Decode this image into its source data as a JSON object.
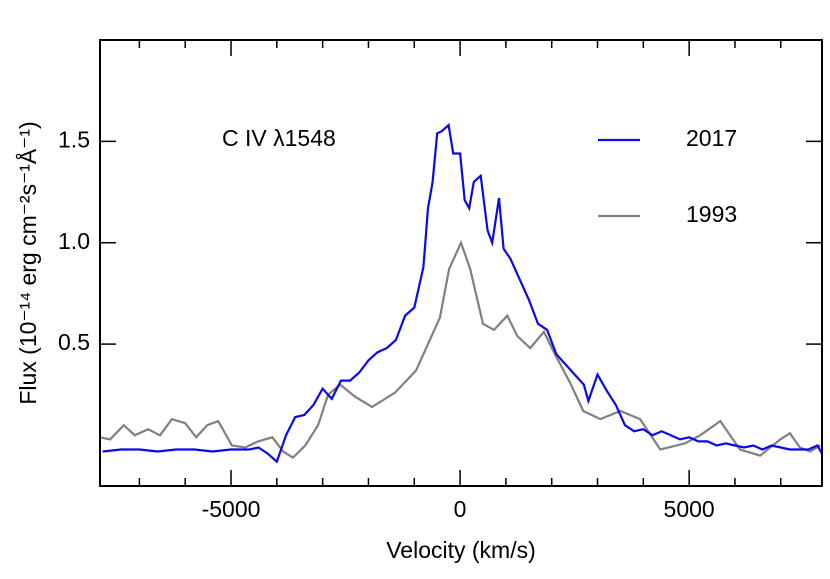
{
  "chart_data": {
    "type": "line",
    "annotation": "C IV λ1548",
    "x_label": "Velocity (km/s)",
    "y_label": "Flux (10⁻¹⁴ erg cm⁻²s⁻¹Å⁻¹)",
    "xlim": [
      -7860,
      7900
    ],
    "ylim": [
      -0.2,
      2.0
    ],
    "xticks": [
      -5000,
      0,
      5000
    ],
    "xminorticks": [
      -7000,
      -6000,
      -4000,
      -3000,
      -2000,
      -1000,
      1000,
      2000,
      3000,
      4000,
      6000,
      7000
    ],
    "yticks": [
      0.5,
      {
        "value": 1.0,
        "label": "1.0"
      },
      1.5
    ],
    "legend": "upper right",
    "series": [
      {
        "name": "2017",
        "color": "#0a0ae6",
        "x": [
          -7800,
          -7400,
          -7000,
          -6600,
          -6200,
          -5800,
          -5400,
          -5000,
          -4600,
          -4400,
          -4200,
          -4000,
          -3800,
          -3600,
          -3400,
          -3200,
          -3000,
          -2800,
          -2600,
          -2400,
          -2200,
          -2000,
          -1800,
          -1600,
          -1400,
          -1200,
          -1000,
          -800,
          -700,
          -600,
          -500,
          -400,
          -250,
          -150,
          0,
          100,
          200,
          300,
          450,
          600,
          700,
          850,
          950,
          1100,
          1300,
          1500,
          1700,
          1900,
          2100,
          2300,
          2500,
          2700,
          2800,
          3000,
          3200,
          3400,
          3600,
          3800,
          4000,
          4200,
          4400,
          4600,
          4800,
          5000,
          5200,
          5400,
          5600,
          5800,
          6000,
          6200,
          6400,
          6600,
          6800,
          7000,
          7200,
          7400,
          7600,
          7800,
          7900
        ],
        "values": [
          -0.03,
          -0.02,
          -0.02,
          -0.03,
          -0.02,
          -0.02,
          -0.03,
          -0.02,
          -0.02,
          -0.01,
          -0.04,
          -0.08,
          0.05,
          0.14,
          0.15,
          0.2,
          0.28,
          0.23,
          0.32,
          0.32,
          0.36,
          0.42,
          0.46,
          0.48,
          0.52,
          0.64,
          0.68,
          0.88,
          1.17,
          1.3,
          1.54,
          1.55,
          1.58,
          1.44,
          1.44,
          1.21,
          1.17,
          1.3,
          1.33,
          1.06,
          1.0,
          1.22,
          0.97,
          0.92,
          0.82,
          0.72,
          0.6,
          0.57,
          0.45,
          0.4,
          0.35,
          0.3,
          0.22,
          0.35,
          0.27,
          0.2,
          0.1,
          0.07,
          0.08,
          0.05,
          0.07,
          0.05,
          0.03,
          0.04,
          0.02,
          0.02,
          0.0,
          0.01,
          0.0,
          -0.01,
          0.0,
          -0.02,
          0.0,
          -0.01,
          -0.02,
          -0.02,
          -0.02,
          0.0,
          -0.04
        ]
      },
      {
        "name": "1993",
        "color": "#808080",
        "x": [
          -7860,
          -7640,
          -7340,
          -7100,
          -6810,
          -6550,
          -6290,
          -6000,
          -5760,
          -5520,
          -5280,
          -4980,
          -4690,
          -4410,
          -4100,
          -3860,
          -3650,
          -3380,
          -3100,
          -2880,
          -2620,
          -2290,
          -1920,
          -1420,
          -960,
          -440,
          -240,
          20,
          220,
          500,
          740,
          1030,
          1250,
          1530,
          1830,
          2070,
          2400,
          2690,
          3060,
          3500,
          3930,
          4370,
          4910,
          5240,
          5680,
          6110,
          6550,
          6990,
          7200,
          7420,
          7640,
          7860
        ],
        "values": [
          0.04,
          0.03,
          0.1,
          0.05,
          0.08,
          0.05,
          0.13,
          0.11,
          0.04,
          0.1,
          0.12,
          0.0,
          -0.01,
          0.02,
          0.04,
          -0.03,
          -0.06,
          0.0,
          0.1,
          0.25,
          0.3,
          0.24,
          0.19,
          0.26,
          0.37,
          0.63,
          0.87,
          1.0,
          0.87,
          0.6,
          0.57,
          0.64,
          0.54,
          0.48,
          0.56,
          0.45,
          0.31,
          0.17,
          0.13,
          0.17,
          0.13,
          -0.02,
          0.01,
          0.05,
          0.12,
          -0.02,
          -0.05,
          0.03,
          0.06,
          -0.01,
          -0.03,
          0.0
        ]
      }
    ]
  }
}
